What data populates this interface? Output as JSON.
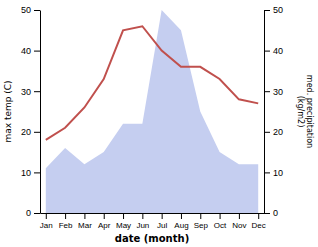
{
  "chart_data": {
    "type": "line",
    "xlabel": "date (month)",
    "ylabel": "max temp (C)",
    "y2label": "med. precipitation\n(kg/m2)",
    "categories": [
      "Jan",
      "Feb",
      "Mar",
      "Apr",
      "May",
      "Jun",
      "Jul",
      "Aug",
      "Sep",
      "Oct",
      "Nov",
      "Dec"
    ],
    "series": [
      {
        "type": "area",
        "color": "#c5cef0",
        "axis": "y2",
        "values": [
          11,
          16,
          12,
          15,
          22,
          22,
          50,
          45,
          25,
          15,
          12,
          12
        ]
      },
      {
        "type": "line",
        "color": "#c0504d",
        "values": [
          18,
          21,
          26,
          33,
          45,
          46,
          40,
          36,
          36,
          33,
          28,
          27
        ]
      }
    ],
    "ylim": [
      0,
      50
    ],
    "yticks": [
      0,
      10,
      20,
      30,
      40,
      50
    ],
    "y2lim": [
      0,
      50
    ],
    "y2ticks": [
      0,
      10,
      20,
      30,
      40,
      50
    ],
    "grid": false
  }
}
